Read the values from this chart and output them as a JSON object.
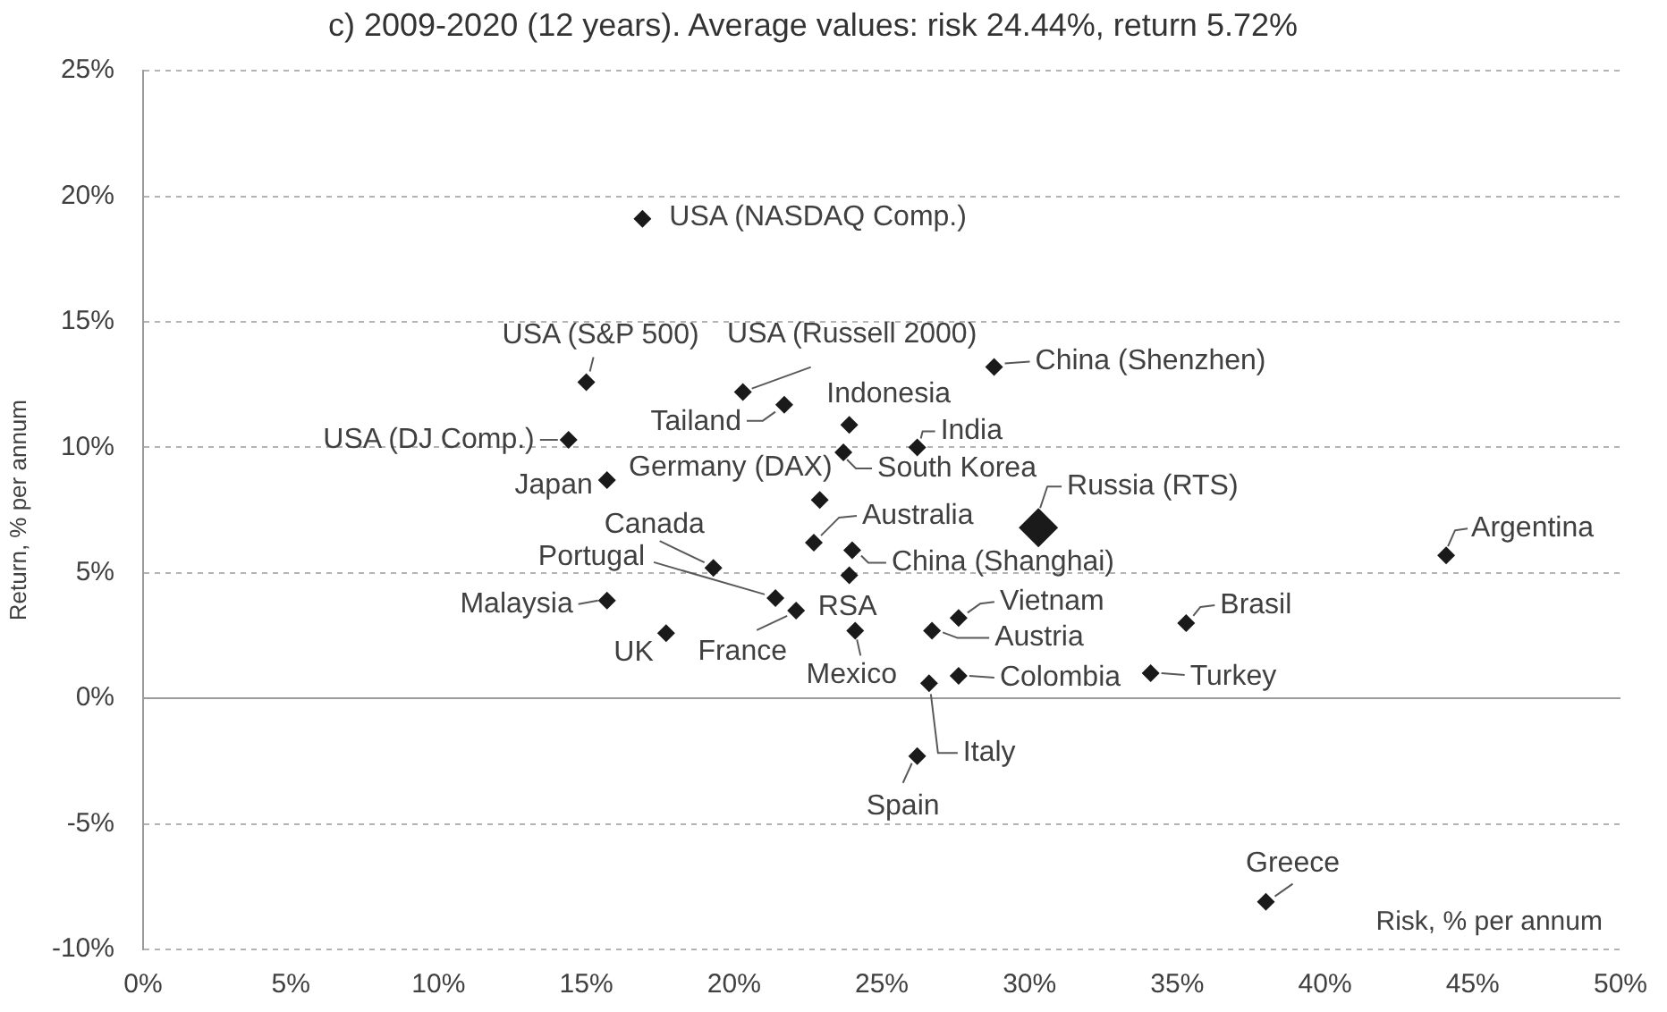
{
  "chart_data": {
    "type": "scatter",
    "title": "c) 2009-2020 (12 years). Average values: risk 24.44%, return 5.72%",
    "xlabel": "Risk, % per annum",
    "ylabel": "Return, % per annum",
    "series": [
      {
        "color": "#1a1a1a",
        "x": [
          16.9,
          15.0,
          14.4,
          15.7,
          20.3,
          21.7,
          23.9,
          26.2,
          22.9,
          23.7,
          28.8,
          22.7,
          19.3,
          21.4,
          24.0,
          23.9,
          15.7,
          17.7,
          22.1,
          24.1,
          27.6,
          26.7,
          27.6,
          26.6,
          26.2,
          35.3,
          34.1,
          44.1,
          38.0
        ],
        "values": [
          19.1,
          12.6,
          10.3,
          8.7,
          12.2,
          11.7,
          10.9,
          10.0,
          7.9,
          9.8,
          13.2,
          6.2,
          5.2,
          4.0,
          5.9,
          4.9,
          3.9,
          2.6,
          3.5,
          2.7,
          3.2,
          2.7,
          0.9,
          0.6,
          -2.3,
          3.0,
          1.0,
          5.7,
          -8.1
        ]
      },
      {
        "color": "#1a1a1a",
        "x": [
          30.3
        ],
        "values": [
          6.8
        ]
      }
    ],
    "xlim": [
      0,
      50
    ],
    "xticks": [
      {
        "value": 0,
        "label": "0%"
      },
      {
        "value": 5,
        "label": "5%"
      },
      {
        "value": 10,
        "label": "10%"
      },
      {
        "value": 15,
        "label": "15%"
      },
      {
        "value": 20,
        "label": "20%"
      },
      {
        "value": 25,
        "label": "25%"
      },
      {
        "value": 30,
        "label": "30%"
      },
      {
        "value": 35,
        "label": "35%"
      },
      {
        "value": 40,
        "label": "40%"
      },
      {
        "value": 45,
        "label": "45%"
      },
      {
        "value": 50,
        "label": "50%"
      }
    ],
    "ylim": [
      -10,
      25
    ],
    "yticks": [
      {
        "value": -10,
        "label": "-10%"
      },
      {
        "value": -5,
        "label": "-5%"
      },
      {
        "value": 0,
        "label": "0%"
      },
      {
        "value": 5,
        "label": "5%"
      },
      {
        "value": 10,
        "label": "10%"
      },
      {
        "value": 15,
        "label": "15%"
      },
      {
        "value": 20,
        "label": "20%"
      },
      {
        "value": 25,
        "label": "25%"
      }
    ],
    "grid": "y",
    "legend": false,
    "marker": "diamond",
    "annotations": [
      {
        "text": "USA (NASDAQ Comp.)",
        "x": 16.9,
        "y": 19.1
      },
      {
        "text": "USA (S&P 500)",
        "x": 15.0,
        "y": 12.6
      },
      {
        "text": "USA (DJ Comp.)",
        "x": 14.4,
        "y": 10.3
      },
      {
        "text": "Japan",
        "x": 15.7,
        "y": 8.7
      },
      {
        "text": "USA (Russell 2000)",
        "x": 20.3,
        "y": 12.2
      },
      {
        "text": "Tailand",
        "x": 21.7,
        "y": 11.7
      },
      {
        "text": "Indonesia",
        "x": 23.9,
        "y": 10.9
      },
      {
        "text": "India",
        "x": 26.2,
        "y": 10.0
      },
      {
        "text": "Germany (DAX)",
        "x": 22.9,
        "y": 7.9
      },
      {
        "text": "South Korea",
        "x": 23.7,
        "y": 9.8
      },
      {
        "text": "China (Shenzhen)",
        "x": 28.8,
        "y": 13.2
      },
      {
        "text": "Russia (RTS)",
        "x": 30.3,
        "y": 6.8
      },
      {
        "text": "Australia",
        "x": 22.7,
        "y": 6.2
      },
      {
        "text": "Canada",
        "x": 19.3,
        "y": 5.2
      },
      {
        "text": "Portugal",
        "x": 21.4,
        "y": 4.0
      },
      {
        "text": "China (Shanghai)",
        "x": 24.0,
        "y": 5.9
      },
      {
        "text": "RSA",
        "x": 23.9,
        "y": 4.9
      },
      {
        "text": "Malaysia",
        "x": 15.7,
        "y": 3.9
      },
      {
        "text": "UK",
        "x": 17.7,
        "y": 2.6
      },
      {
        "text": "France",
        "x": 22.1,
        "y": 3.5
      },
      {
        "text": "Mexico",
        "x": 24.1,
        "y": 2.7
      },
      {
        "text": "Vietnam",
        "x": 27.6,
        "y": 3.2
      },
      {
        "text": "Austria",
        "x": 26.7,
        "y": 2.7
      },
      {
        "text": "Colombia",
        "x": 27.6,
        "y": 0.9
      },
      {
        "text": "Italy",
        "x": 26.6,
        "y": 0.6
      },
      {
        "text": "Spain",
        "x": 26.2,
        "y": -2.3
      },
      {
        "text": "Brasil",
        "x": 35.3,
        "y": 3.0
      },
      {
        "text": "Turkey",
        "x": 34.1,
        "y": 1.0
      },
      {
        "text": "Argentina",
        "x": 44.1,
        "y": 5.7
      },
      {
        "text": "Greece",
        "x": 38.0,
        "y": -8.1
      }
    ]
  }
}
